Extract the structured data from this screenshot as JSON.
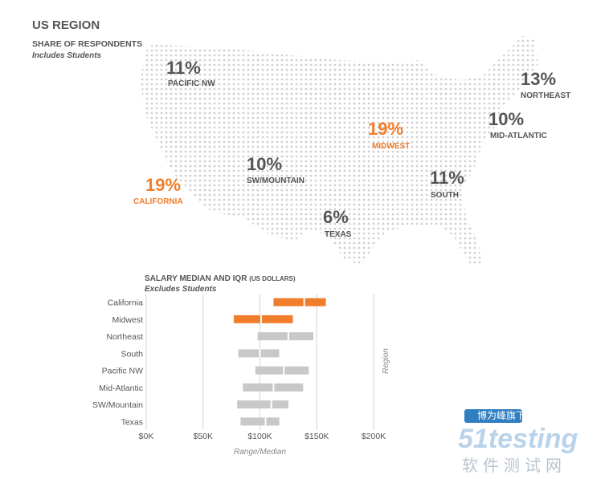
{
  "chart_data": [
    {
      "type": "map",
      "title": "US REGION",
      "subtitle": "SHARE OF RESPONDENTS",
      "note": "Includes Students",
      "categories": [
        "PACIFIC NW",
        "NORTHEAST",
        "MIDWEST",
        "MID-ATLANTIC",
        "SW/MOUNTAIN",
        "CALIFORNIA",
        "SOUTH",
        "TEXAS"
      ],
      "values": [
        11,
        13,
        19,
        10,
        10,
        19,
        11,
        6
      ],
      "value_labels": [
        "11%",
        "13%",
        "19%",
        "10%",
        "10%",
        "19%",
        "11%",
        "6%"
      ],
      "colors": [
        "#555555",
        "#555555",
        "#f07d2b",
        "#555555",
        "#555555",
        "#f07d2b",
        "#555555",
        "#555555"
      ]
    },
    {
      "type": "range-bar",
      "title": "SALARY MEDIAN AND IQR",
      "title_suffix": "(US DOLLARS)",
      "note": "Excludes Students",
      "categories": [
        "California",
        "Midwest",
        "Northeast",
        "South",
        "Pacific NW",
        "Mid-Atlantic",
        "SW/Mountain",
        "Texas"
      ],
      "q1": [
        112000,
        77000,
        98000,
        81000,
        96000,
        85000,
        80000,
        83000
      ],
      "median": [
        139000,
        101000,
        125000,
        100000,
        121000,
        112000,
        110000,
        105000
      ],
      "q3": [
        158000,
        129000,
        147000,
        117000,
        143000,
        138000,
        125000,
        117000
      ],
      "colors": [
        "#f07d2b",
        "#f07d2b",
        "#c8c8c8",
        "#c8c8c8",
        "#c8c8c8",
        "#c8c8c8",
        "#c8c8c8",
        "#c8c8c8"
      ],
      "xlim": [
        0,
        200000
      ],
      "xticks": [
        {
          "value": 0,
          "label": "$0K"
        },
        {
          "value": 50000,
          "label": "$50K"
        },
        {
          "value": 100000,
          "label": "$100K"
        },
        {
          "value": 150000,
          "label": "$150K"
        },
        {
          "value": 200000,
          "label": "$200K"
        }
      ],
      "xlabel": "Range/Median",
      "ylabel": "Region",
      "grid": true
    }
  ],
  "watermark": {
    "top": "博为峰旗下",
    "brand": "51testing",
    "bottom": "软件测试网"
  }
}
